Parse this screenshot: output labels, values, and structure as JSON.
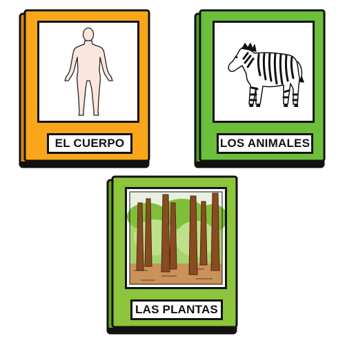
{
  "books": [
    {
      "label": "EL CUERPO",
      "color": "#f9a61a",
      "picture": "human-body-icon"
    },
    {
      "label": "LOS ANIMALES",
      "color": "#6bbf3a",
      "picture": "zebra-icon"
    },
    {
      "label": "LAS PLANTAS",
      "color": "#8cc43c",
      "picture": "forest-icon"
    }
  ]
}
